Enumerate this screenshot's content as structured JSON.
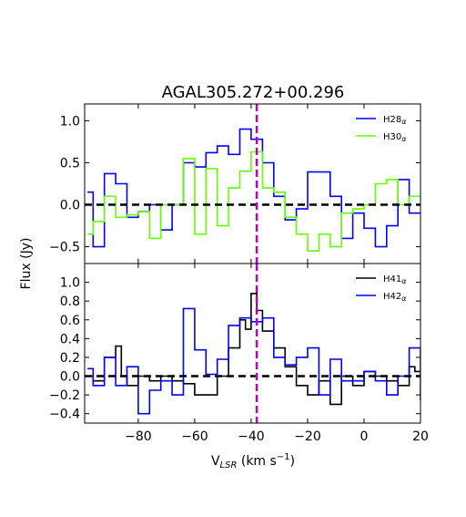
{
  "title": "AGAL305.272+00.296",
  "ylabel": "Flux (Jy)",
  "xlabel_main": "V",
  "xlabel_sub": "LSR",
  "xlabel_unit": " (km s",
  "xlabel_exp": "−1",
  "xlabel_close": ")",
  "chart_data": [
    {
      "type": "line",
      "step": true,
      "xlim": [
        -99,
        20
      ],
      "ylim": [
        -0.7,
        1.2
      ],
      "xticks": [
        -80,
        -60,
        -40,
        -20,
        0,
        20
      ],
      "yticks": [
        -0.5,
        0.0,
        0.5,
        1.0
      ],
      "ytick_labels": [
        "−0.5",
        "0.0",
        "0.5",
        "1.0"
      ],
      "marker_velocity": -38,
      "marker_color": "#bf00bf",
      "zero_line": true,
      "legend": "top-right",
      "series": [
        {
          "name": "H28",
          "greek": "α",
          "color": "#0000ff",
          "x": [
            -98,
            -96,
            -92,
            -88,
            -84,
            -80,
            -76,
            -72,
            -68,
            -64,
            -60,
            -56,
            -52,
            -48,
            -44,
            -40,
            -36,
            -32,
            -28,
            -24,
            -20,
            -16,
            -12,
            -8,
            -4,
            0,
            4,
            8,
            12,
            16,
            20
          ],
          "y": [
            0.15,
            -0.5,
            0.37,
            0.25,
            -0.15,
            -0.08,
            0.0,
            -0.3,
            0.0,
            0.5,
            0.45,
            0.62,
            0.7,
            0.6,
            0.9,
            0.78,
            0.5,
            0.1,
            -0.18,
            -0.05,
            0.39,
            0.39,
            0.1,
            -0.4,
            -0.1,
            -0.28,
            -0.5,
            -0.25,
            0.3,
            -0.1,
            -0.1
          ]
        },
        {
          "name": "H30",
          "greek": "α",
          "color": "#66ff00",
          "x": [
            -98,
            -96,
            -92,
            -88,
            -84,
            -80,
            -76,
            -72,
            -68,
            -64,
            -60,
            -56,
            -52,
            -48,
            -44,
            -40,
            -36,
            -32,
            -28,
            -24,
            -20,
            -16,
            -12,
            -8,
            -4,
            0,
            4,
            8,
            12,
            16,
            20
          ],
          "y": [
            -0.35,
            -0.2,
            0.1,
            -0.15,
            -0.12,
            -0.08,
            -0.4,
            0.0,
            0.0,
            0.55,
            -0.35,
            0.43,
            -0.25,
            0.2,
            0.4,
            0.63,
            0.2,
            0.15,
            -0.15,
            -0.35,
            -0.55,
            -0.35,
            -0.5,
            -0.1,
            -0.05,
            0.0,
            0.25,
            0.3,
            0.0,
            0.1,
            0.1
          ]
        }
      ]
    },
    {
      "type": "line",
      "step": true,
      "xlim": [
        -99,
        20
      ],
      "ylim": [
        -0.5,
        1.2
      ],
      "xticks": [
        -80,
        -60,
        -40,
        -20,
        0,
        20
      ],
      "xtick_labels": [
        "−80",
        "−60",
        "−40",
        "−20",
        "0",
        "20"
      ],
      "yticks": [
        -0.4,
        -0.2,
        0.0,
        0.2,
        0.4,
        0.6,
        0.8,
        1.0
      ],
      "ytick_labels": [
        "−0.4",
        "−0.2",
        "0.0",
        "0.2",
        "0.4",
        "0.6",
        "0.8",
        "1.0"
      ],
      "xlabel": "V_LSR (km s^-1)",
      "marker_velocity": -38,
      "marker_color": "#bf00bf",
      "zero_line": true,
      "legend": "top-right",
      "series": [
        {
          "name": "H41",
          "greek": "α",
          "color": "#000000",
          "x": [
            -98,
            -96,
            -92,
            -88,
            -86,
            -84,
            -80,
            -76,
            -72,
            -68,
            -64,
            -60,
            -56,
            -52,
            -48,
            -44,
            -42,
            -40,
            -38,
            -36,
            -32,
            -28,
            -24,
            -20,
            -16,
            -12,
            -8,
            -4,
            0,
            4,
            8,
            12,
            16,
            18,
            20
          ],
          "y": [
            0.0,
            -0.05,
            0.2,
            0.32,
            0.0,
            -0.1,
            0.0,
            -0.05,
            0.0,
            -0.05,
            -0.08,
            -0.2,
            -0.2,
            0.0,
            0.3,
            0.6,
            0.5,
            0.88,
            0.7,
            0.48,
            0.3,
            0.1,
            -0.1,
            -0.2,
            -0.05,
            -0.3,
            0.0,
            -0.1,
            0.05,
            0.0,
            -0.05,
            -0.1,
            0.1,
            0.05,
            0.05
          ]
        },
        {
          "name": "H42",
          "greek": "α",
          "color": "#0000ff",
          "x": [
            -98,
            -96,
            -92,
            -88,
            -84,
            -80,
            -76,
            -72,
            -68,
            -64,
            -60,
            -56,
            -52,
            -48,
            -44,
            -40,
            -36,
            -32,
            -28,
            -24,
            -20,
            -16,
            -12,
            -8,
            -4,
            0,
            4,
            8,
            12,
            16,
            20
          ],
          "y": [
            0.08,
            -0.1,
            0.2,
            -0.1,
            0.1,
            -0.4,
            -0.15,
            -0.05,
            -0.2,
            0.72,
            0.28,
            0.02,
            0.18,
            0.54,
            0.62,
            0.58,
            0.62,
            0.2,
            0.12,
            0.2,
            0.3,
            -0.2,
            0.18,
            -0.05,
            -0.05,
            0.05,
            -0.05,
            -0.2,
            0.0,
            0.3,
            -0.25
          ]
        }
      ]
    }
  ]
}
